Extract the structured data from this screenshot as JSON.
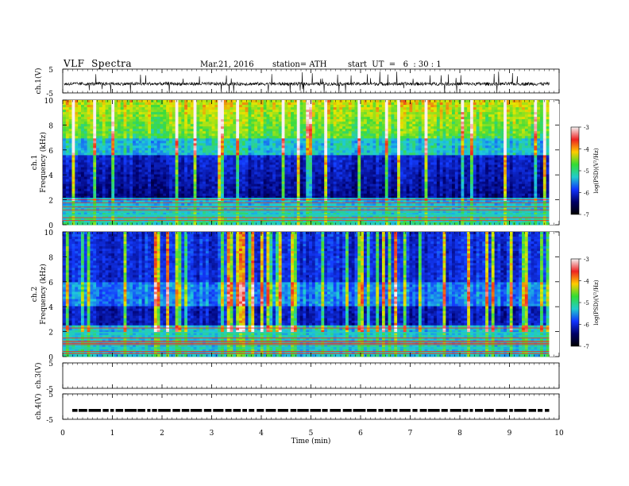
{
  "header": {
    "title": "VLF  Spectra",
    "date": "Mar.21, 2016",
    "station": "station= ATH",
    "start": "start  UT  =   6  : 30 : 1"
  },
  "colorbar": {
    "label": "log(PSD)(V²/Hz)",
    "ticks": [
      -3,
      -4,
      -5,
      -6,
      -7
    ],
    "stops": [
      "#f4f4f4",
      "#ee2222",
      "#ffcc00",
      "#33dd33",
      "#22cccc",
      "#1133ff",
      "#000066",
      "#000000"
    ]
  },
  "chart_data": [
    {
      "type": "line",
      "ylabel": "ch.1(V)",
      "ylim": [
        -5,
        5
      ],
      "yticks": [
        5,
        -5
      ],
      "description_values": "broadband waveform oscillating around -1 V with impulsive spikes"
    },
    {
      "type": "heatmap",
      "ylabel": "ch.1\nFrequency  (kHz)",
      "ylabel_lines": [
        "ch.1",
        "Frequency  (kHz)"
      ],
      "ylim": [
        0,
        10
      ],
      "yticks": [
        0,
        2,
        4,
        6,
        8,
        10
      ],
      "zlim": [
        -7,
        -3
      ]
    },
    {
      "type": "heatmap",
      "ylabel_lines": [
        "ch.2",
        "Frequency  (kHz)"
      ],
      "ylim": [
        0,
        10
      ],
      "yticks": [
        0,
        2,
        4,
        6,
        8,
        10
      ],
      "zlim": [
        -7,
        -3
      ]
    },
    {
      "type": "line",
      "ylabel": "ch.3(V)",
      "ylim": [
        -5,
        5
      ],
      "yticks": [
        5,
        -5
      ]
    },
    {
      "type": "line",
      "ylabel": "ch.4(V)",
      "ylim": [
        -5,
        5
      ],
      "yticks": [
        5,
        -5
      ],
      "level": -1.5
    }
  ],
  "xaxis": {
    "label": "Time  (min)",
    "xlim": [
      0,
      10
    ],
    "ticks": [
      "0",
      "1",
      "2",
      "3",
      "4",
      "5",
      "6",
      "7",
      "8",
      "9",
      "10"
    ],
    "data_end": 9.8
  }
}
